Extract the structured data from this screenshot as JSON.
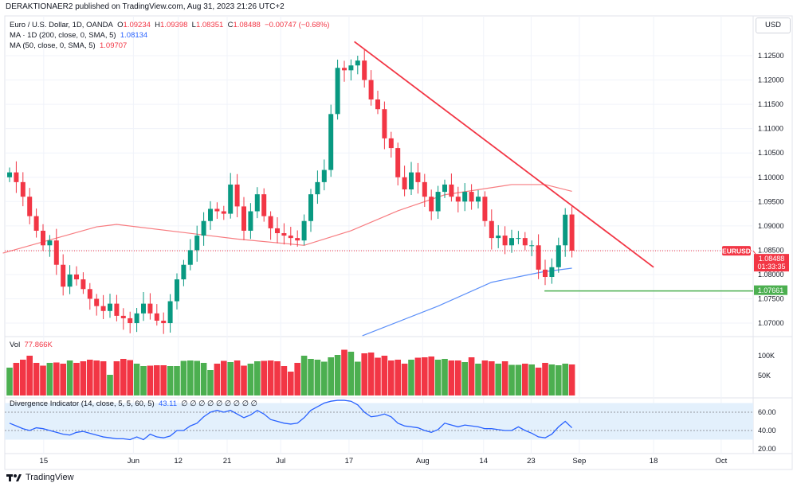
{
  "header": {
    "attribution": "DERAKTIONAER2 published on TradingView.com, Aug 31, 2023 21:26 UTC+2",
    "symbol_line": "Euro / U.S. Dollar, 1D, OANDA",
    "o_label": "O",
    "o": "1.09234",
    "h_label": "H",
    "h": "1.09398",
    "l_label": "L",
    "l": "1.08351",
    "c_label": "C",
    "c": "1.08488",
    "change": "−0.00747 (−0.68%)",
    "ma200_label": "MA · 1D (200, close, 0, SMA, 5)",
    "ma200_value": "1.08134",
    "ma50_label": "MA (50, close, 0, SMA, 5)",
    "ma50_value": "1.09707"
  },
  "currency_button": "USD",
  "volume": {
    "label": "Vol",
    "value": "77.866K"
  },
  "indicator": {
    "label": "Divergence Indicator (14, close, 5, 5, 60, 5)",
    "value": "43.11",
    "extras": "∅ ∅ ∅ ∅ ∅ ∅ ∅ ∅ ∅"
  },
  "footer": {
    "brand": "TradingView"
  },
  "price_labels": {
    "symbol": "EURUSD",
    "last": "1.08488",
    "countdown": "01:33:35",
    "support": "1.07661"
  },
  "colors": {
    "up": "#089981",
    "down": "#f23645",
    "ma50": "#f77c80",
    "ma200": "#5b8ff9",
    "trend": "#f23645",
    "support": "#4caf50"
  },
  "chart_data": {
    "type": "candlestick",
    "title": "Euro / U.S. Dollar, 1D, OANDA",
    "first_open": 1.1,
    "closes": [
      1.101,
      1.099,
      1.096,
      1.092,
      1.089,
      1.086,
      1.087,
      1.082,
      1.0775,
      1.08,
      1.079,
      1.077,
      1.075,
      1.0735,
      1.0725,
      1.074,
      1.0715,
      1.071,
      1.07,
      1.072,
      1.074,
      1.072,
      1.0705,
      1.07,
      1.0745,
      1.079,
      1.082,
      1.085,
      1.088,
      1.091,
      1.0935,
      1.093,
      1.0925,
      1.0985,
      1.094,
      1.089,
      1.093,
      1.0965,
      1.092,
      1.0895,
      1.0885,
      1.088,
      1.0875,
      1.087,
      1.091,
      1.0965,
      1.099,
      1.1015,
      1.113,
      1.1225,
      1.122,
      1.123,
      1.124,
      1.12,
      1.116,
      1.114,
      1.108,
      1.106,
      1.1,
      1.0975,
      1.101,
      1.099,
      1.096,
      1.093,
      1.097,
      1.0985,
      1.096,
      1.095,
      1.097,
      1.095,
      1.096,
      1.091,
      1.0875,
      1.088,
      1.086,
      1.0875,
      1.0875,
      1.086,
      1.086,
      1.081,
      1.0795,
      1.0815,
      1.086,
      1.0923,
      1.0849
    ],
    "last_bar": {
      "open": 1.09234,
      "high": 1.09398,
      "low": 1.08351,
      "close": 1.08488
    },
    "volume": [
      70,
      82,
      90,
      100,
      82,
      75,
      82,
      83,
      80,
      88,
      82,
      86,
      90,
      88,
      86,
      52,
      86,
      92,
      89,
      80,
      74,
      75,
      76,
      76,
      74,
      74,
      87,
      88,
      87,
      82,
      64,
      80,
      87,
      84,
      88,
      75,
      80,
      86,
      87,
      88,
      86,
      74,
      60,
      82,
      100,
      92,
      90,
      85,
      96,
      102,
      115,
      110,
      85,
      106,
      108,
      95,
      100,
      88,
      90,
      80,
      90,
      95,
      96,
      98,
      90,
      92,
      88,
      88,
      84,
      96,
      80,
      88,
      86,
      80,
      86,
      77,
      77,
      80,
      78,
      70,
      82,
      78,
      76,
      80,
      78
    ],
    "volume_axis": {
      "ticks": [
        "100K",
        "50K"
      ],
      "tick_values": [
        100,
        50
      ],
      "unit": "K"
    },
    "ma50": [
      [
        -1,
        1.0844
      ],
      [
        13,
        1.0898
      ],
      [
        16,
        1.0903
      ],
      [
        34,
        1.0873
      ],
      [
        44,
        1.086
      ],
      [
        51,
        1.089
      ],
      [
        58,
        1.0931
      ],
      [
        65,
        1.0964
      ],
      [
        75,
        1.0985
      ],
      [
        80,
        1.0985
      ],
      [
        84,
        1.0971
      ]
    ],
    "ma200": [
      [
        52.7,
        1.0674
      ],
      [
        64,
        1.0735
      ],
      [
        72,
        1.0784
      ],
      [
        79.5,
        1.0805
      ],
      [
        84,
        1.0813
      ]
    ],
    "trendline": [
      [
        51.5,
        1.1279
      ],
      [
        96.2,
        1.0815
      ]
    ],
    "support_level": {
      "start_index": 79.9,
      "price": 1.07661
    },
    "oscillator": [
      48,
      45,
      42,
      40,
      43,
      42,
      40,
      38,
      36,
      35,
      38,
      39,
      37,
      35,
      33,
      32,
      31,
      31,
      30,
      33,
      30,
      36,
      33,
      32,
      34,
      40,
      40,
      45,
      48,
      55,
      60,
      62,
      60,
      62,
      58,
      54,
      57,
      62,
      58,
      52,
      50,
      48,
      47,
      48,
      54,
      62,
      66,
      70,
      72,
      73,
      73,
      72,
      68,
      60,
      55,
      56,
      58,
      55,
      48,
      45,
      44,
      43,
      40,
      38,
      41,
      48,
      46,
      44,
      46,
      45,
      44,
      42,
      42,
      41,
      40,
      40,
      44,
      40,
      37,
      33,
      32,
      36,
      44,
      50,
      43
    ],
    "oscillator_axis": {
      "ticks": [
        "60.00",
        "40.00",
        "20.00"
      ],
      "tick_values": [
        60,
        40,
        20
      ]
    },
    "price_axis": {
      "ticks": [
        "1.12500",
        "1.12000",
        "1.11500",
        "1.11000",
        "1.10500",
        "1.10000",
        "1.09500",
        "1.09000",
        "1.08500",
        "1.08000",
        "1.07500",
        "1.07000"
      ],
      "range": [
        1.0665,
        1.1315
      ]
    },
    "x_ticks": [
      {
        "label": "15",
        "index": 5.1
      },
      {
        "label": "Jun",
        "index": 18.5
      },
      {
        "label": "12",
        "index": 25.2
      },
      {
        "label": "21",
        "index": 32.5
      },
      {
        "label": "Jul",
        "index": 40.5
      },
      {
        "label": "17",
        "index": 50.7
      },
      {
        "label": "Aug",
        "index": 61.7
      },
      {
        "label": "14",
        "index": 70.8
      },
      {
        "label": "23",
        "index": 77.9
      },
      {
        "label": "Sep",
        "index": 85.1
      },
      {
        "label": "18",
        "index": 96.2
      },
      {
        "label": "Oct",
        "index": 106.3
      }
    ]
  }
}
